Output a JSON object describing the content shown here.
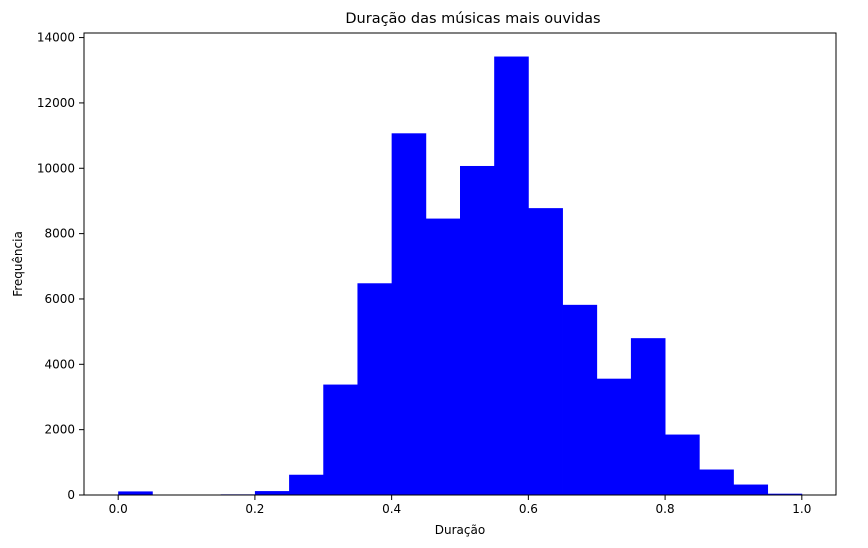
{
  "chart_data": {
    "type": "bar",
    "title": "Duração das músicas mais ouvidas",
    "xlabel": "Duração",
    "ylabel": "Frequência",
    "bin_edges": [
      0.0,
      0.05,
      0.1,
      0.15,
      0.2,
      0.25,
      0.3,
      0.35,
      0.4,
      0.45,
      0.5,
      0.55,
      0.6,
      0.65,
      0.7,
      0.75,
      0.8,
      0.85,
      0.9,
      0.95,
      1.0
    ],
    "values": [
      110,
      0,
      0,
      20,
      120,
      620,
      3380,
      6480,
      11070,
      8460,
      10070,
      13420,
      8780,
      5820,
      3560,
      4800,
      1850,
      780,
      320,
      40
    ],
    "xlim": [
      -0.05,
      1.05
    ],
    "ylim": [
      0,
      14140
    ],
    "xticks": [
      0.0,
      0.2,
      0.4,
      0.6,
      0.8,
      1.0
    ],
    "xtick_labels": [
      "0.0",
      "0.2",
      "0.4",
      "0.6",
      "0.8",
      "1.0"
    ],
    "yticks": [
      0,
      2000,
      4000,
      6000,
      8000,
      10000,
      12000,
      14000
    ],
    "ytick_labels": [
      "0",
      "2000",
      "4000",
      "6000",
      "8000",
      "10000",
      "12000",
      "14000"
    ],
    "bar_color": "#0000ff",
    "grid": false
  }
}
